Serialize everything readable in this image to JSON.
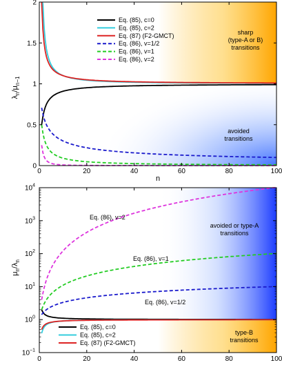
{
  "chart_data": [
    {
      "type": "line",
      "title": "",
      "xlabel": "n",
      "ylabel_main": "λ",
      "ylabel_sub1": "n",
      "ylabel_mid": "/μ",
      "ylabel_sub2": "n−1",
      "xlim": [
        0,
        100
      ],
      "ylim": [
        0,
        2
      ],
      "xticks": [
        "0",
        "20",
        "40",
        "60",
        "80",
        "100"
      ],
      "yticks": [
        "0",
        "0.5",
        "1",
        "1.5",
        "2"
      ],
      "legend_placement": "top-left",
      "series": [
        {
          "name": "Eq. (85), c=0",
          "color": "#000000",
          "dash": "solid",
          "formula": "n/(n+1)"
        },
        {
          "name": "Eq. (85), c=2",
          "color": "#33ccdd",
          "dash": "solid",
          "formula": "1+1.6/n^1.2"
        },
        {
          "name": "Eq. (87) (F2-GMCT)",
          "color": "#dd2222",
          "dash": "solid",
          "formula": "1+1/n"
        },
        {
          "name": "Eq. (86), v=1/2",
          "color": "#1a1acc",
          "dash": "dashed",
          "formula": "1/(1+n)^0.5"
        },
        {
          "name": "Eq. (86), v=1",
          "color": "#22cc22",
          "dash": "dashed",
          "formula": "1/(1+n)"
        },
        {
          "name": "Eq. (86), v=2",
          "color": "#dd33dd",
          "dash": "dashed",
          "formula": "1/(1+n)^2"
        }
      ],
      "annotations": [
        {
          "lines": [
            "sharp",
            "(type-A or B)",
            "transitions"
          ]
        },
        {
          "lines": [
            "avoided",
            "transitions"
          ]
        }
      ]
    },
    {
      "type": "line",
      "title": "",
      "xlabel": "",
      "ylabel_main": "μ",
      "ylabel_sub1": "n",
      "ylabel_mid": "/λ",
      "ylabel_sub2": "n",
      "xlim": [
        0,
        100
      ],
      "ylim": [
        0.1,
        10000
      ],
      "yscale": "log",
      "xticks": [
        "0",
        "20",
        "40",
        "60",
        "80",
        "100"
      ],
      "yticks": [
        {
          "base": "10",
          "exp": "−1"
        },
        {
          "base": "10",
          "exp": "0"
        },
        {
          "base": "10",
          "exp": "1"
        },
        {
          "base": "10",
          "exp": "2"
        },
        {
          "base": "10",
          "exp": "3"
        },
        {
          "base": "10",
          "exp": "4"
        }
      ],
      "legend_placement": "bottom-left",
      "series": [
        {
          "name": "Eq. (85), c=0",
          "color": "#000000",
          "dash": "solid"
        },
        {
          "name": "Eq. (85), c=2",
          "color": "#33ccdd",
          "dash": "solid"
        },
        {
          "name": "Eq. (87) (F2-GMCT)",
          "color": "#dd2222",
          "dash": "solid"
        },
        {
          "name": "",
          "color": "#1a1acc",
          "dash": "dashed",
          "formula": "(1+n)^0.5"
        },
        {
          "name": "",
          "color": "#22cc22",
          "dash": "dashed",
          "formula": "1+n"
        },
        {
          "name": "",
          "color": "#dd33dd",
          "dash": "dashed",
          "formula": "(1+n)^2"
        }
      ],
      "curve_labels": [
        "Eq. (86),  v=2",
        "Eq. (86),  v=1",
        "Eq. (86),  v=1/2"
      ],
      "annotations": [
        {
          "lines": [
            "avoided or type-A",
            "transitions"
          ]
        },
        {
          "lines": [
            "type-B",
            "transitions"
          ]
        }
      ]
    }
  ]
}
